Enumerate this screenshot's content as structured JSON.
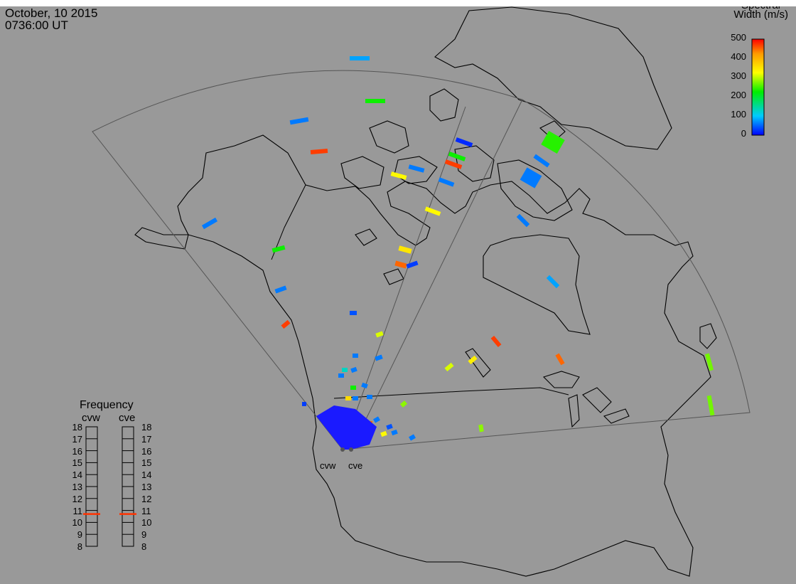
{
  "header": {
    "date": "October, 10 2015",
    "time": "0736:00 UT"
  },
  "colorbar": {
    "title_line1": "Spectral",
    "title_line2": "Width (m/s)",
    "ticks": [
      "500",
      "400",
      "300",
      "200",
      "100",
      "0"
    ],
    "range": [
      0,
      500
    ],
    "colors": [
      "#0000ff",
      "#00ccff",
      "#00ee00",
      "#ffff00",
      "#ff9900",
      "#ff0000"
    ]
  },
  "frequency_panel": {
    "title": "Frequency",
    "radars": [
      {
        "name": "cvw",
        "value": 10.7
      },
      {
        "name": "cve",
        "value": 10.7
      }
    ],
    "ticks": [
      "18",
      "17",
      "16",
      "15",
      "14",
      "13",
      "12",
      "11",
      "10",
      "9",
      "8"
    ],
    "range": [
      8,
      18
    ],
    "marker_color": "#ff3300"
  },
  "radar_sites": [
    "cvw",
    "cve"
  ],
  "map_colors": {
    "background": "#999999",
    "coastline": "#000000",
    "fov": "#555555"
  },
  "echoes": {
    "unit": "m/s",
    "values": [
      80,
      230,
      60,
      470,
      60,
      230,
      60,
      470,
      40,
      310,
      60,
      60,
      330,
      60,
      20,
      470,
      330,
      60,
      230,
      350,
      450,
      30,
      60,
      240,
      60,
      60,
      80,
      470,
      450,
      310,
      340,
      280,
      270,
      270,
      280,
      60,
      60,
      230,
      60,
      130,
      60,
      60,
      60,
      30,
      360,
      300,
      450,
      40,
      60,
      330,
      60
    ]
  }
}
